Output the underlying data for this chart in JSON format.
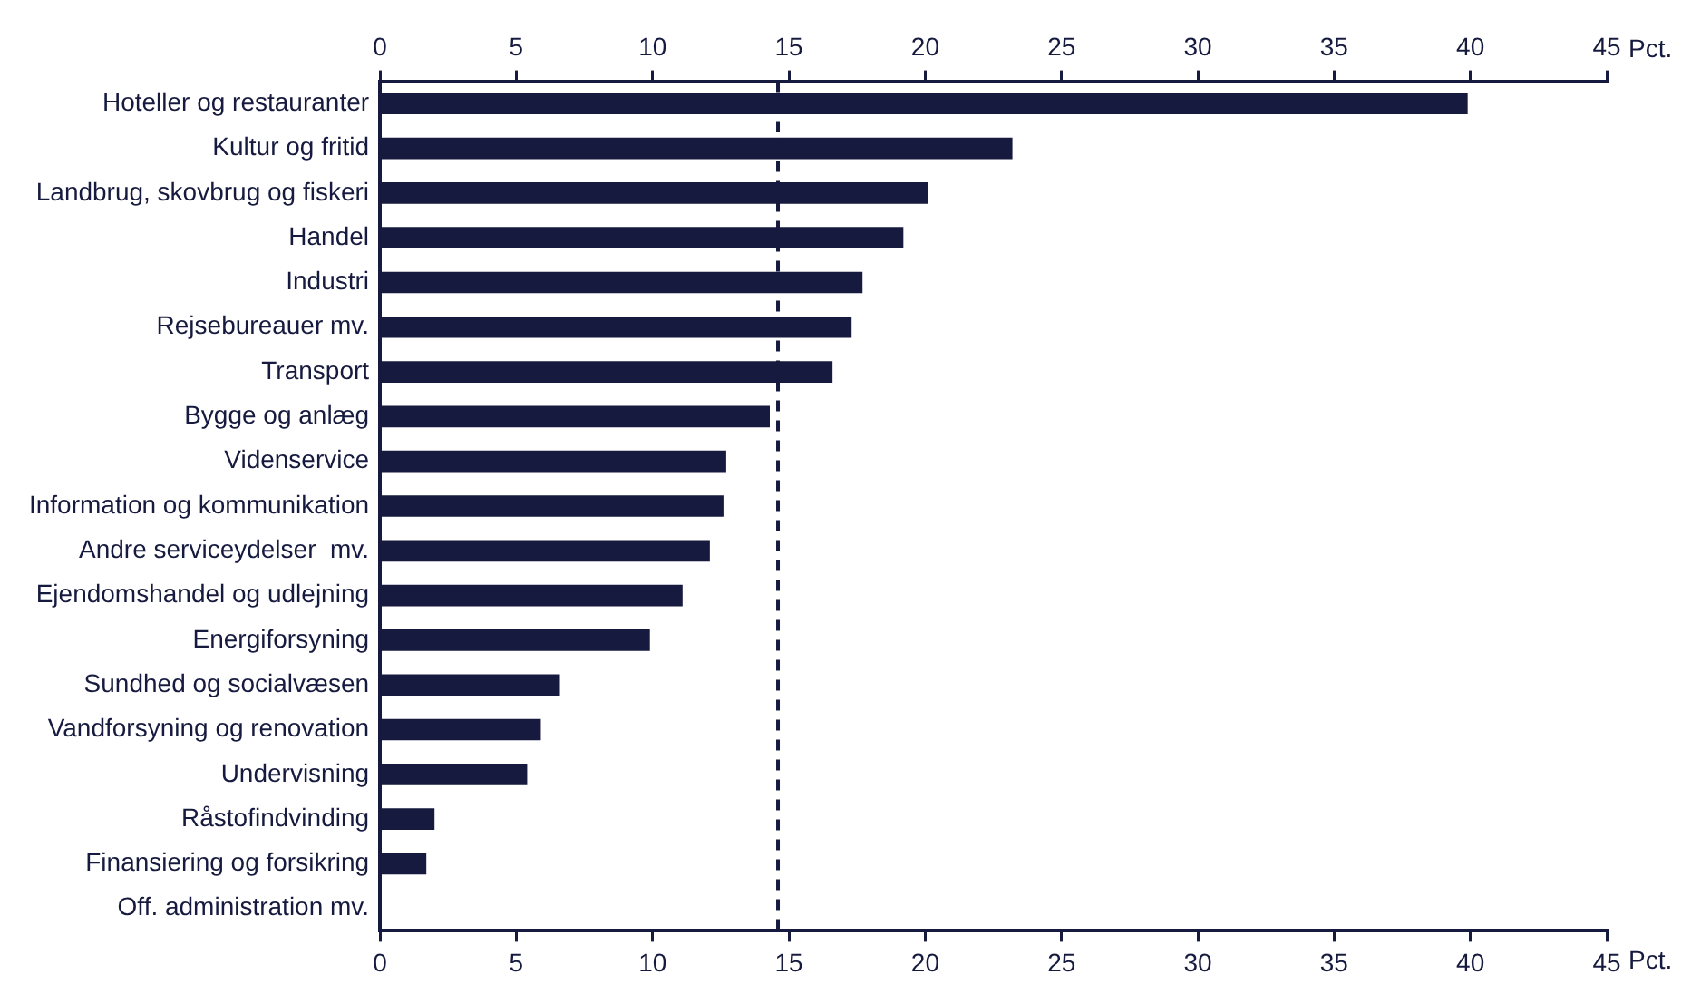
{
  "chart_data": {
    "type": "bar",
    "orientation": "horizontal",
    "xlabel": "Pct.",
    "x2label": "Pct.",
    "categories": [
      "Hoteller og restauranter",
      "Kultur og fritid",
      "Landbrug, skovbrug og fiskeri",
      "Handel",
      "Industri",
      "Rejsebureauer mv.",
      "Transport",
      "Bygge og anlæg",
      "Videnservice",
      "Information og kommunikation",
      "Andre serviceydelser  mv.",
      "Ejendomshandel og udlejning",
      "Energiforsyning",
      "Sundhed og socialvæsen",
      "Vandforsyning og renovation",
      "Undervisning",
      "Råstofindvinding",
      "Finansiering og forsikring",
      "Off. administration mv."
    ],
    "values": [
      39.9,
      23.2,
      20.1,
      19.2,
      17.7,
      17.3,
      16.6,
      14.3,
      12.7,
      12.6,
      12.1,
      11.1,
      9.9,
      6.6,
      5.9,
      5.4,
      2.0,
      1.7,
      0
    ],
    "color": "#161a3e",
    "xlim": [
      0,
      45
    ],
    "xticks": [
      0,
      5,
      10,
      15,
      20,
      25,
      30,
      35,
      40,
      45
    ],
    "x2lim": [
      0,
      45
    ],
    "x2ticks": [
      0,
      5,
      10,
      15,
      20,
      25,
      30,
      35,
      40,
      45
    ],
    "ref_lines": [
      {
        "axis": "x",
        "value": 14.6,
        "line_style": "dashed",
        "color": "#161a3e"
      }
    ],
    "grid": false,
    "legend": false
  }
}
